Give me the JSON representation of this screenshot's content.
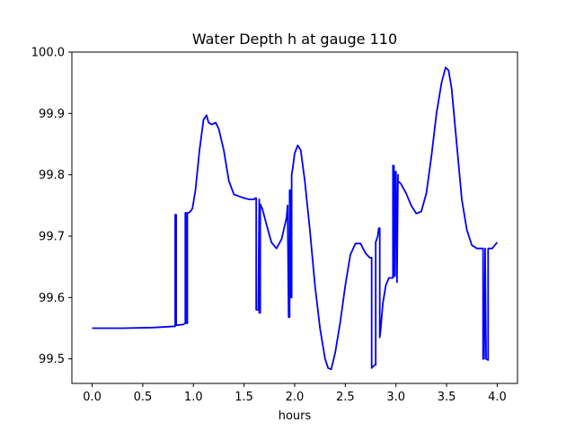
{
  "chart_data": {
    "type": "line",
    "title": "Water Depth h at gauge 110",
    "xlabel": "hours",
    "ylabel": "",
    "xlim": [
      -0.2,
      4.2
    ],
    "ylim": [
      99.46,
      100.0
    ],
    "xticks": [
      0.0,
      0.5,
      1.0,
      1.5,
      2.0,
      2.5,
      3.0,
      3.5,
      4.0
    ],
    "xtick_labels": [
      "0.0",
      "0.5",
      "1.0",
      "1.5",
      "2.0",
      "2.5",
      "3.0",
      "3.5",
      "4.0"
    ],
    "yticks": [
      99.5,
      99.6,
      99.7,
      99.8,
      99.9,
      100.0
    ],
    "ytick_labels": [
      "99.5",
      "99.6",
      "99.7",
      "99.8",
      "99.9",
      "100.0"
    ],
    "grid": false,
    "color": "#0000ff",
    "series": [
      {
        "name": "",
        "x": [
          0.0,
          0.3,
          0.6,
          0.81,
          0.82,
          0.82,
          0.83,
          0.83,
          0.84,
          0.9,
          0.92,
          0.92,
          0.93,
          0.93,
          0.94,
          0.94,
          0.95,
          0.97,
          0.99,
          1.02,
          1.06,
          1.1,
          1.13,
          1.15,
          1.18,
          1.22,
          1.25,
          1.3,
          1.35,
          1.4,
          1.45,
          1.5,
          1.55,
          1.6,
          1.61,
          1.62,
          1.62,
          1.64,
          1.65,
          1.65,
          1.66,
          1.66,
          1.68,
          1.72,
          1.77,
          1.82,
          1.87,
          1.92,
          1.93,
          1.94,
          1.95,
          1.95,
          1.96,
          1.96,
          1.97,
          1.97,
          1.98,
          2.0,
          2.03,
          2.06,
          2.1,
          2.15,
          2.2,
          2.25,
          2.3,
          2.33,
          2.36,
          2.4,
          2.45,
          2.5,
          2.55,
          2.6,
          2.65,
          2.7,
          2.74,
          2.76,
          2.76,
          2.77,
          2.79,
          2.8,
          2.8,
          2.82,
          2.83,
          2.84,
          2.84,
          2.85,
          2.87,
          2.9,
          2.93,
          2.96,
          2.97,
          2.97,
          2.98,
          2.98,
          2.99,
          2.99,
          3.0,
          3.01,
          3.01,
          3.02,
          3.02,
          3.05,
          3.1,
          3.15,
          3.2,
          3.25,
          3.3,
          3.35,
          3.4,
          3.45,
          3.49,
          3.52,
          3.55,
          3.6,
          3.65,
          3.7,
          3.75,
          3.8,
          3.85,
          3.86,
          3.86,
          3.87,
          3.88,
          3.88,
          3.89,
          3.91,
          3.91,
          3.95,
          4.0
        ],
        "y": [
          99.55,
          99.55,
          99.551,
          99.553,
          99.553,
          99.735,
          99.735,
          99.555,
          99.555,
          99.556,
          99.558,
          99.738,
          99.738,
          99.558,
          99.558,
          99.738,
          99.738,
          99.74,
          99.745,
          99.775,
          99.84,
          99.89,
          99.897,
          99.885,
          99.882,
          99.885,
          99.875,
          99.84,
          99.79,
          99.768,
          99.765,
          99.762,
          99.76,
          99.76,
          99.762,
          99.762,
          99.58,
          99.58,
          99.76,
          99.575,
          99.575,
          99.752,
          99.745,
          99.72,
          99.69,
          99.68,
          99.695,
          99.73,
          99.75,
          99.568,
          99.568,
          99.775,
          99.775,
          99.6,
          99.6,
          99.8,
          99.81,
          99.835,
          99.848,
          99.84,
          99.79,
          99.71,
          99.62,
          99.55,
          99.5,
          99.485,
          99.483,
          99.51,
          99.56,
          99.62,
          99.67,
          99.688,
          99.688,
          99.672,
          99.665,
          99.665,
          99.485,
          99.487,
          99.49,
          99.49,
          99.69,
          99.7,
          99.713,
          99.713,
          99.535,
          99.55,
          99.59,
          99.62,
          99.632,
          99.632,
          99.632,
          99.815,
          99.815,
          99.635,
          99.635,
          99.805,
          99.805,
          99.625,
          99.625,
          99.8,
          99.79,
          99.785,
          99.77,
          99.75,
          99.737,
          99.74,
          99.77,
          99.83,
          99.9,
          99.95,
          99.975,
          99.97,
          99.94,
          99.85,
          99.76,
          99.71,
          99.685,
          99.68,
          99.68,
          99.68,
          99.5,
          99.5,
          99.68,
          99.68,
          99.5,
          99.498,
          99.68,
          99.68,
          99.69
        ]
      }
    ]
  }
}
